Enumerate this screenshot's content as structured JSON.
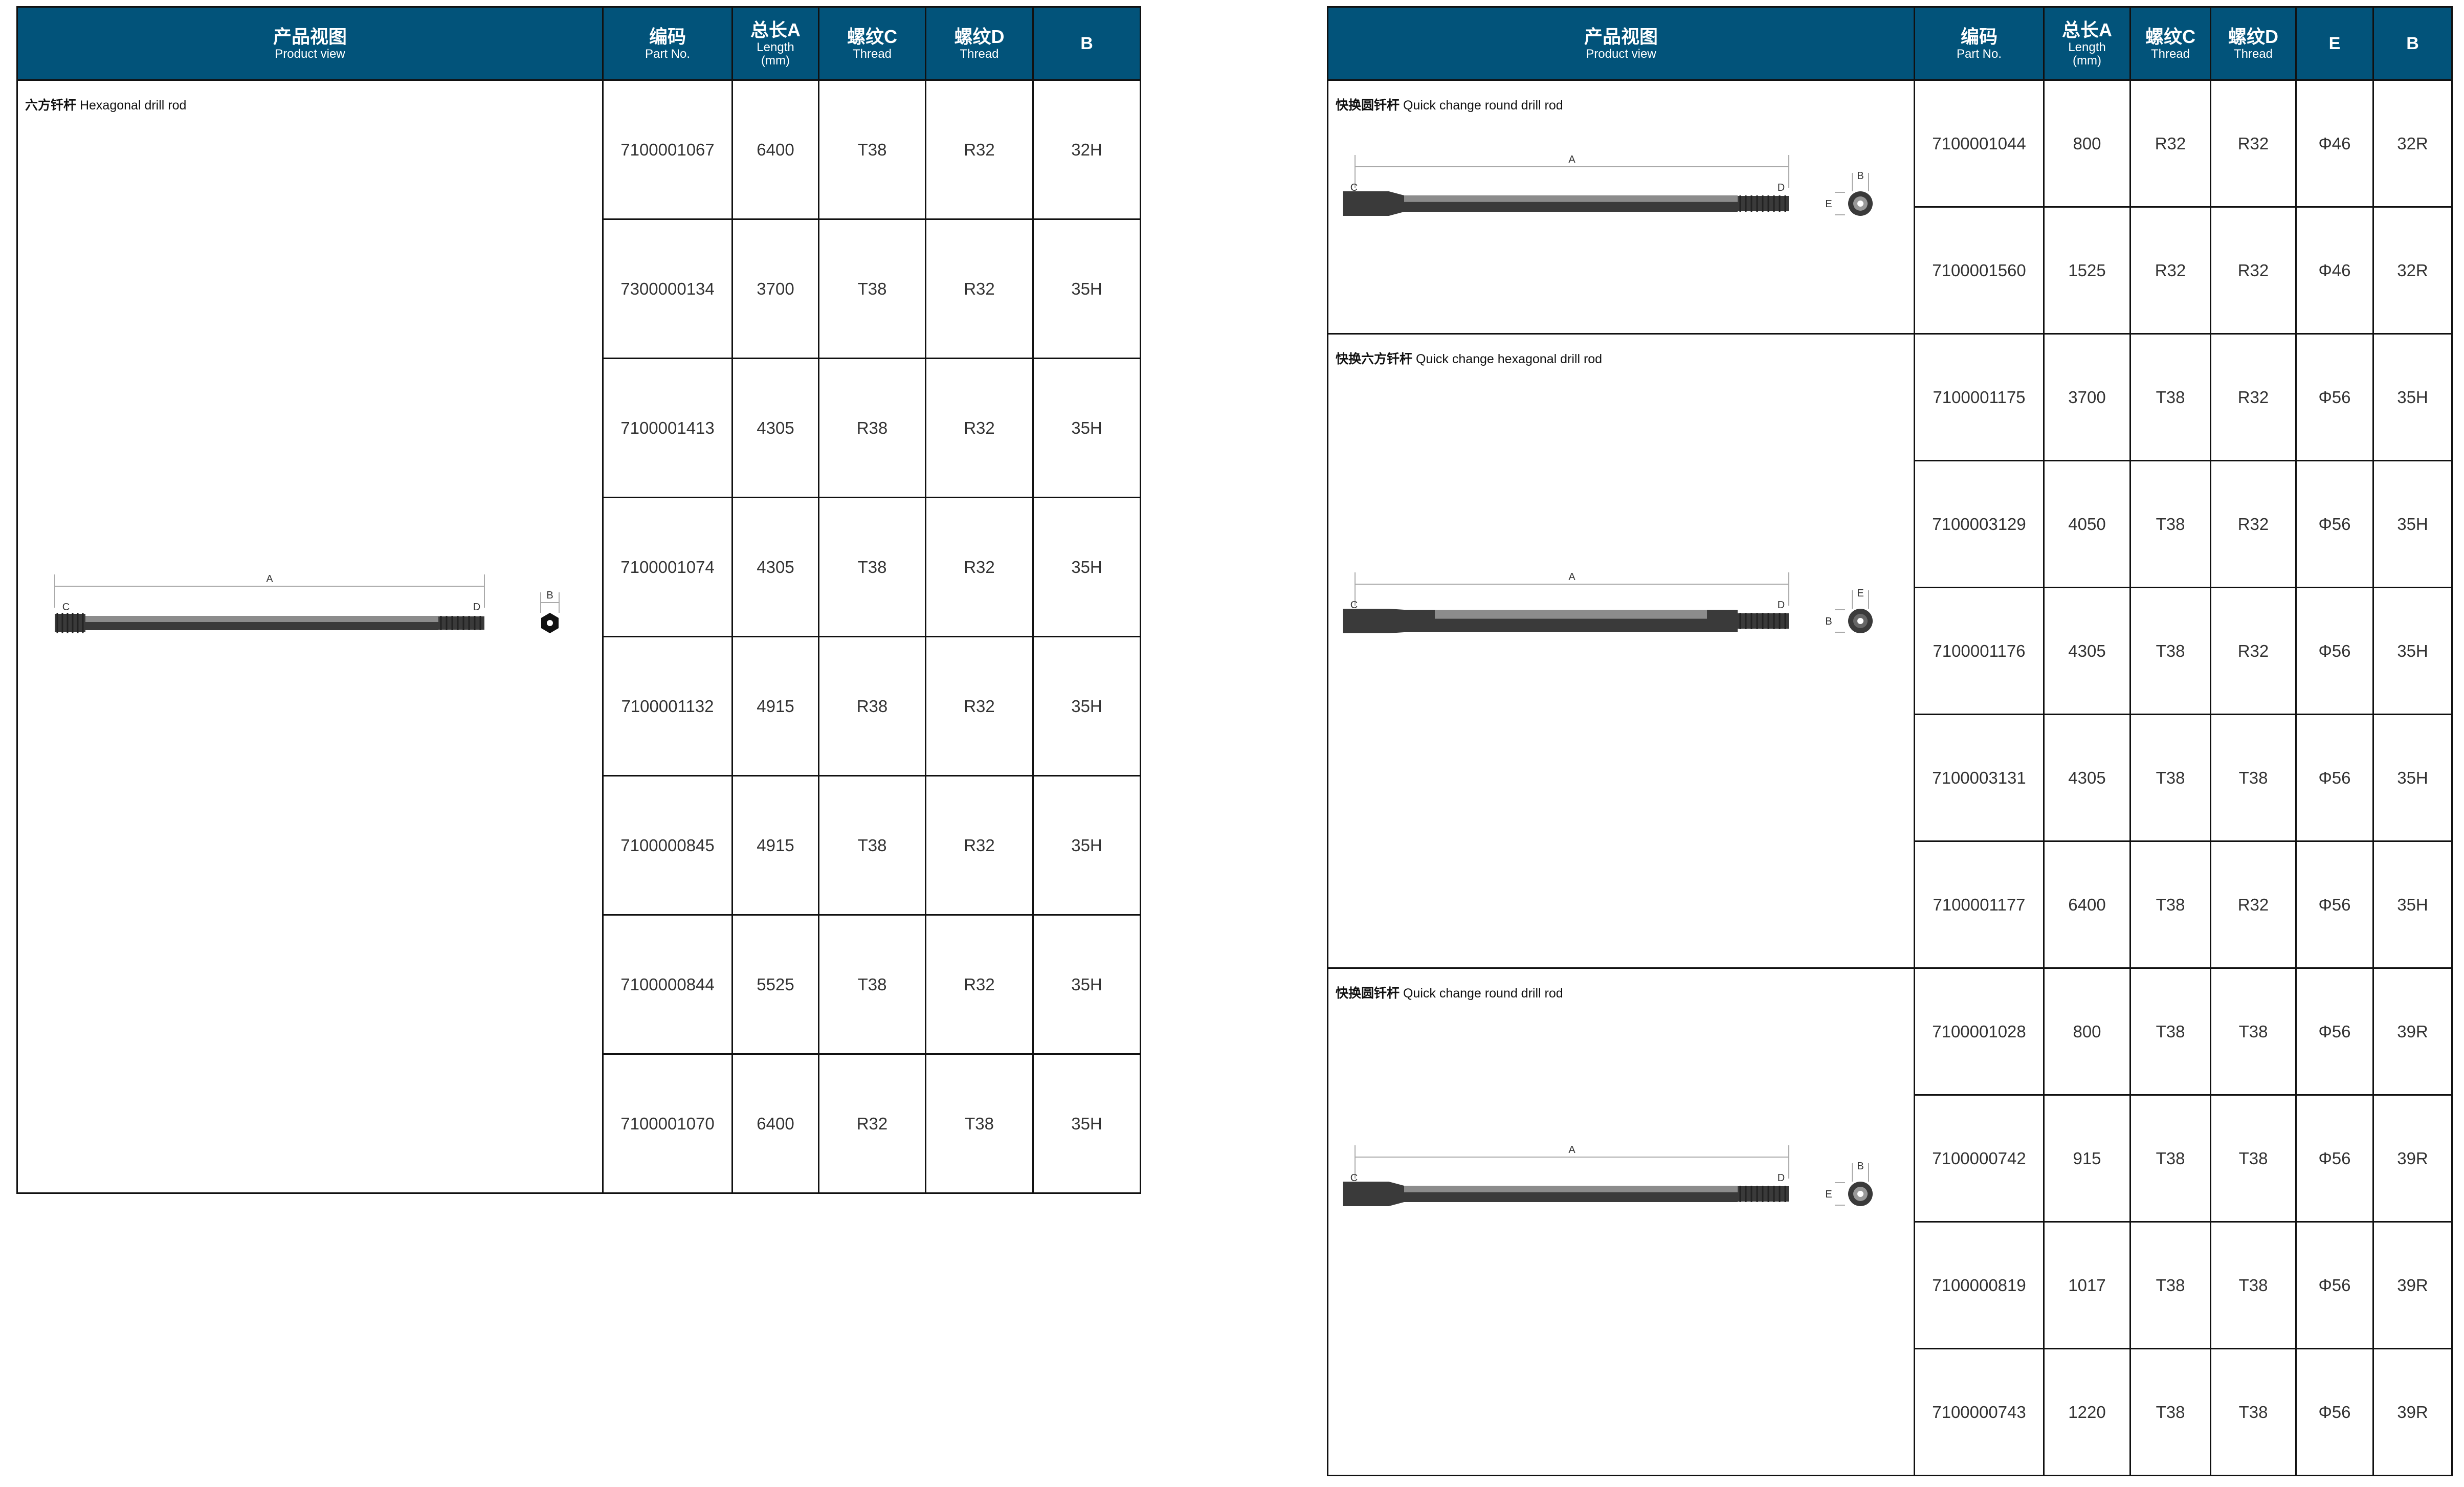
{
  "colors": {
    "header_bg": "#02537a",
    "header_text": "#ffffff",
    "rod_dark": "#3a3a3a",
    "rod_light": "#8c8c8c"
  },
  "drawing_labels": {
    "a": "A",
    "b": "B",
    "c": "C",
    "d": "D",
    "e": "E"
  },
  "left_table": {
    "headers": [
      {
        "cn": "产品视图",
        "en": "Product view"
      },
      {
        "cn": "编码",
        "en": "Part No."
      },
      {
        "cn": "总长A",
        "en": "Length",
        "en2": "(mm)"
      },
      {
        "cn": "螺纹C",
        "en": "Thread"
      },
      {
        "cn": "螺纹D",
        "en": "Thread"
      },
      {
        "only": "B"
      }
    ],
    "sections": [
      {
        "title_cn": "六方钎杆",
        "title_en": "Hexagonal drill rod",
        "drawing": "hexagonal",
        "rows": [
          [
            "7100001067",
            "6400",
            "T38",
            "R32",
            "32H"
          ],
          [
            "7300000134",
            "3700",
            "T38",
            "R32",
            "35H"
          ],
          [
            "7100001413",
            "4305",
            "R38",
            "R32",
            "35H"
          ],
          [
            "7100001074",
            "4305",
            "T38",
            "R32",
            "35H"
          ],
          [
            "7100001132",
            "4915",
            "R38",
            "R32",
            "35H"
          ],
          [
            "7100000845",
            "4915",
            "T38",
            "R32",
            "35H"
          ],
          [
            "7100000844",
            "5525",
            "T38",
            "R32",
            "35H"
          ],
          [
            "7100001070",
            "6400",
            "R32",
            "T38",
            "35H"
          ]
        ]
      }
    ]
  },
  "right_table": {
    "headers": [
      {
        "cn": "产品视图",
        "en": "Product view"
      },
      {
        "cn": "编码",
        "en": "Part No."
      },
      {
        "cn": "总长A",
        "en": "Length",
        "en2": "(mm)"
      },
      {
        "cn": "螺纹C",
        "en": "Thread"
      },
      {
        "cn": "螺纹D",
        "en": "Thread"
      },
      {
        "only": "E"
      },
      {
        "only": "B"
      }
    ],
    "sections": [
      {
        "title_cn": "快换圆钎杆",
        "title_en": "Quick change round drill rod",
        "drawing": "qc-round",
        "rows": [
          [
            "7100001044",
            "800",
            "R32",
            "R32",
            "Φ46",
            "32R"
          ],
          [
            "7100001560",
            "1525",
            "R32",
            "R32",
            "Φ46",
            "32R"
          ]
        ]
      },
      {
        "title_cn": "快换六方钎杆",
        "title_en": "Quick change hexagonal drill rod",
        "drawing": "qc-hexagonal",
        "rows": [
          [
            "7100001175",
            "3700",
            "T38",
            "R32",
            "Φ56",
            "35H"
          ],
          [
            "7100003129",
            "4050",
            "T38",
            "R32",
            "Φ56",
            "35H"
          ],
          [
            "7100001176",
            "4305",
            "T38",
            "R32",
            "Φ56",
            "35H"
          ],
          [
            "7100003131",
            "4305",
            "T38",
            "T38",
            "Φ56",
            "35H"
          ],
          [
            "7100001177",
            "6400",
            "T38",
            "R32",
            "Φ56",
            "35H"
          ]
        ]
      },
      {
        "title_cn": "快换圆钎杆",
        "title_en": "Quick change round drill rod",
        "drawing": "qc-round",
        "rows": [
          [
            "7100001028",
            "800",
            "T38",
            "T38",
            "Φ56",
            "39R"
          ],
          [
            "7100000742",
            "915",
            "T38",
            "T38",
            "Φ56",
            "39R"
          ],
          [
            "7100000819",
            "1017",
            "T38",
            "T38",
            "Φ56",
            "39R"
          ],
          [
            "7100000743",
            "1220",
            "T38",
            "T38",
            "Φ56",
            "39R"
          ]
        ]
      }
    ]
  }
}
